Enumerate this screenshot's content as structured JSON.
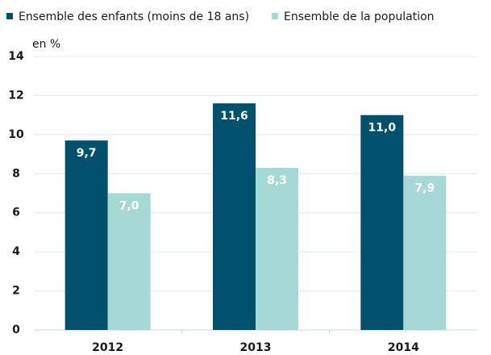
{
  "chart_data": {
    "type": "bar",
    "y_label": "en %",
    "categories": [
      "2012",
      "2013",
      "2014"
    ],
    "series": [
      {
        "name": "Ensemble des enfants (moins de 18 ans)",
        "color": "#00506e",
        "values": [
          9.7,
          11.6,
          11.0
        ],
        "value_labels": [
          "9,7",
          "11,6",
          "11,0"
        ]
      },
      {
        "name": "Ensemble de la population",
        "color": "#a6d8d6",
        "values": [
          7.0,
          8.3,
          7.9
        ],
        "value_labels": [
          "7,0",
          "8,3",
          "7,9"
        ]
      }
    ],
    "ylim": [
      0,
      14
    ],
    "yticks": [
      0,
      2,
      4,
      6,
      8,
      10,
      12,
      14
    ],
    "grid": true,
    "legend": "top"
  }
}
